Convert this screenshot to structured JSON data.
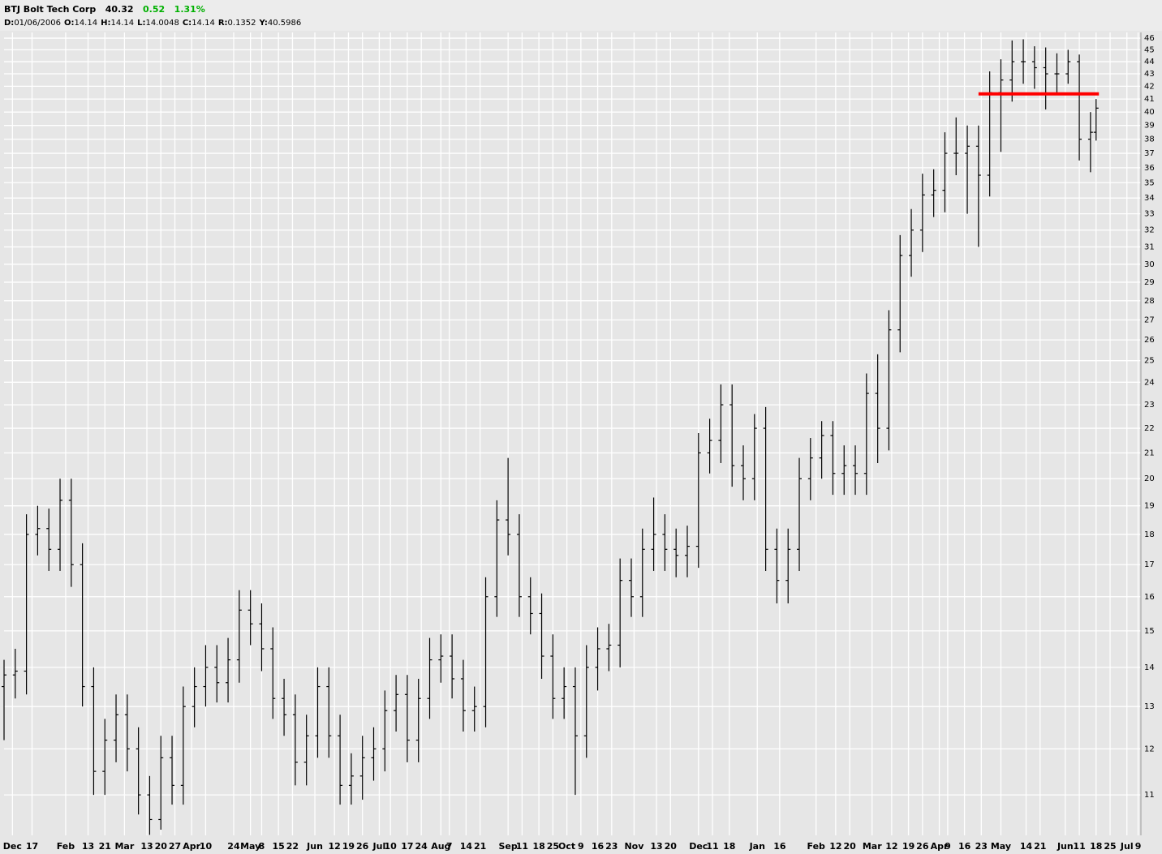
{
  "header": {
    "title": "BTJ Bolt Tech Corp",
    "last": "40.32",
    "change": "0.52",
    "change_pct": "1.31%",
    "change_color": "#00b000",
    "info": [
      {
        "label": "D:",
        "value": "01/06/2006"
      },
      {
        "label": "O:",
        "value": "14.14"
      },
      {
        "label": "H:",
        "value": "14.14"
      },
      {
        "label": "L:",
        "value": "14.0048"
      },
      {
        "label": "C:",
        "value": "14.14"
      },
      {
        "label": "R:",
        "value": "0.1352"
      },
      {
        "label": "Y:",
        "value": "40.5986"
      }
    ]
  },
  "chart_data": {
    "type": "ohlc",
    "color": "#000000",
    "log_scale": true,
    "grid": true,
    "x": [
      0,
      4,
      8,
      12,
      16,
      20,
      24,
      28,
      32,
      36,
      40,
      44,
      48,
      52,
      56,
      60,
      64,
      68,
      72,
      76,
      80,
      84,
      88,
      92,
      96,
      100,
      104,
      108,
      112,
      116,
      120,
      124,
      128,
      132,
      136,
      140,
      144,
      148,
      152,
      156,
      160,
      164,
      168,
      172,
      176,
      180,
      184,
      188,
      192,
      196,
      200,
      204,
      208,
      212,
      216,
      220,
      224,
      228,
      232,
      236,
      240,
      244,
      248,
      252,
      256,
      260,
      264,
      268,
      272,
      276,
      280,
      284,
      288,
      292,
      296,
      300,
      304,
      308,
      312,
      316,
      320,
      324,
      328,
      332,
      336,
      340,
      344,
      348,
      352,
      356,
      360,
      364,
      368,
      372,
      376,
      380,
      384,
      388,
      390
    ],
    "open": [
      13.5,
      13.8,
      13.9,
      18,
      18.2,
      17.5,
      19.2,
      17,
      13.5,
      11.5,
      12.2,
      12.8,
      12,
      11,
      10.5,
      11.8,
      11.2,
      13,
      13.5,
      14,
      13.6,
      14.2,
      15.6,
      15.2,
      14.5,
      13.2,
      12.8,
      11.7,
      12.3,
      13.5,
      12.3,
      11.2,
      11.4,
      11.8,
      12,
      12.9,
      13.3,
      12.2,
      13.2,
      14.2,
      14.3,
      13.7,
      12.9,
      13,
      16,
      18.5,
      18,
      16,
      15.5,
      14.3,
      13.2,
      13.5,
      12.3,
      14,
      14.5,
      14.6,
      16.5,
      16,
      17.5,
      18,
      17.5,
      17.3,
      17.6,
      21,
      21.5,
      23,
      20.5,
      20,
      22,
      17.5,
      16.5,
      17.5,
      20,
      20.8,
      21.7,
      20.2,
      20.5,
      20.2,
      23.5,
      22,
      26.5,
      30.5,
      32,
      34.2,
      34.5,
      37,
      37,
      37.5,
      35.5,
      41.5,
      42.5,
      44,
      44,
      43.5,
      43,
      43,
      44,
      38,
      38.5
    ],
    "high": [
      14.2,
      14.5,
      18.7,
      19,
      18.9,
      20,
      20,
      17.7,
      14,
      12.7,
      13.3,
      13.3,
      12.5,
      11.4,
      12.3,
      12.3,
      13.5,
      14,
      14.6,
      14.6,
      14.8,
      16.2,
      16.2,
      15.8,
      15.1,
      13.7,
      13.3,
      12.8,
      14,
      14,
      12.8,
      11.9,
      12.3,
      12.5,
      13.4,
      13.8,
      13.8,
      13.7,
      14.8,
      14.9,
      14.9,
      14.2,
      13.5,
      16.6,
      19.2,
      20.8,
      18.7,
      16.6,
      16.1,
      14.9,
      14,
      14,
      14.6,
      15.1,
      15.2,
      17.2,
      17.2,
      18.2,
      19.3,
      18.7,
      18.2,
      18.3,
      21.8,
      22.4,
      23.9,
      23.9,
      21.3,
      22.6,
      22.9,
      18.2,
      18.2,
      20.8,
      21.6,
      22.3,
      22.3,
      21.3,
      21.3,
      24.4,
      25.3,
      27.5,
      31.7,
      33.3,
      35.6,
      35.9,
      38.5,
      39.6,
      39,
      39,
      43.2,
      44.2,
      45.8,
      45.9,
      45.3,
      45.2,
      44.7,
      45,
      44.6,
      40,
      41
    ],
    "low": [
      12.2,
      13.2,
      13.3,
      17.3,
      16.8,
      16.8,
      16.3,
      13,
      11,
      11,
      11.7,
      11.5,
      10.6,
      10.2,
      10.3,
      10.8,
      10.8,
      12.5,
      13,
      13.1,
      13.1,
      13.6,
      14.6,
      13.9,
      12.7,
      12.3,
      11.2,
      11.2,
      11.8,
      11.8,
      10.8,
      10.8,
      10.9,
      11.3,
      11.5,
      12.4,
      11.7,
      11.7,
      12.7,
      13.6,
      13.2,
      12.4,
      12.4,
      12.5,
      15.4,
      17.3,
      15.4,
      14.9,
      13.7,
      12.7,
      12.7,
      11,
      11.8,
      13.4,
      13.9,
      14,
      15.4,
      15.4,
      16.8,
      16.8,
      16.6,
      16.6,
      16.9,
      20.2,
      20.6,
      19.7,
      19.2,
      19.2,
      16.8,
      15.8,
      15.8,
      16.8,
      19.2,
      20,
      19.4,
      19.4,
      19.4,
      19.4,
      20.6,
      21.1,
      25.4,
      29.3,
      30.7,
      32.8,
      33.1,
      35.5,
      33,
      31,
      34.1,
      37.1,
      40.8,
      42.2,
      41.8,
      40.2,
      41.3,
      42.2,
      36.5,
      35.7,
      37.9
    ],
    "close": [
      13.8,
      13.9,
      18,
      18.2,
      17.5,
      19.2,
      17,
      13.5,
      11.5,
      12.2,
      12.8,
      12,
      11,
      10.5,
      11.8,
      11.2,
      13,
      13.5,
      14,
      13.6,
      14.2,
      15.6,
      15.2,
      14.5,
      13.2,
      12.8,
      11.7,
      12.3,
      13.5,
      12.3,
      11.2,
      11.4,
      11.8,
      12,
      12.9,
      13.3,
      12.2,
      13.2,
      14.2,
      14.3,
      13.7,
      12.9,
      13,
      16,
      18.5,
      18,
      16,
      15.5,
      14.3,
      13.2,
      13.5,
      12.3,
      14,
      14.5,
      14.6,
      16.5,
      16,
      17.5,
      18,
      17.5,
      17.3,
      17.6,
      21,
      21.5,
      23,
      20.5,
      20,
      22,
      17.5,
      16.5,
      17.5,
      20,
      20.8,
      21.7,
      20.2,
      20.5,
      20.2,
      23.5,
      22,
      26.5,
      30.5,
      32,
      34.2,
      34.5,
      37,
      37,
      37.5,
      35.5,
      41.5,
      42.5,
      44,
      44,
      43.5,
      43,
      43,
      44,
      38,
      38.5,
      40.3
    ],
    "xlim": [
      0,
      406
    ],
    "xticks": [
      {
        "value": 3,
        "label": "Dec"
      },
      {
        "value": 10,
        "label": "17"
      },
      {
        "value": 22,
        "label": "Feb"
      },
      {
        "value": 30,
        "label": "13"
      },
      {
        "value": 36,
        "label": "21"
      },
      {
        "value": 43,
        "label": "Mar"
      },
      {
        "value": 51,
        "label": "13"
      },
      {
        "value": 56,
        "label": "20"
      },
      {
        "value": 61,
        "label": "27"
      },
      {
        "value": 67,
        "label": "Apr"
      },
      {
        "value": 72,
        "label": "10"
      },
      {
        "value": 82,
        "label": "24"
      },
      {
        "value": 88,
        "label": "May"
      },
      {
        "value": 92,
        "label": "8"
      },
      {
        "value": 98,
        "label": "15"
      },
      {
        "value": 103,
        "label": "22"
      },
      {
        "value": 111,
        "label": "Jun"
      },
      {
        "value": 118,
        "label": "12"
      },
      {
        "value": 123,
        "label": "19"
      },
      {
        "value": 128,
        "label": "26"
      },
      {
        "value": 134,
        "label": "Jul"
      },
      {
        "value": 138,
        "label": "10"
      },
      {
        "value": 144,
        "label": "17"
      },
      {
        "value": 149,
        "label": "24"
      },
      {
        "value": 156,
        "label": "Aug"
      },
      {
        "value": 159,
        "label": "7"
      },
      {
        "value": 165,
        "label": "14"
      },
      {
        "value": 170,
        "label": "21"
      },
      {
        "value": 180,
        "label": "Sep"
      },
      {
        "value": 185,
        "label": "11"
      },
      {
        "value": 191,
        "label": "18"
      },
      {
        "value": 196,
        "label": "25"
      },
      {
        "value": 201,
        "label": "Oct"
      },
      {
        "value": 206,
        "label": "9"
      },
      {
        "value": 212,
        "label": "16"
      },
      {
        "value": 217,
        "label": "23"
      },
      {
        "value": 225,
        "label": "Nov"
      },
      {
        "value": 233,
        "label": "13"
      },
      {
        "value": 238,
        "label": "20"
      },
      {
        "value": 248,
        "label": "Dec"
      },
      {
        "value": 253,
        "label": "11"
      },
      {
        "value": 259,
        "label": "18"
      },
      {
        "value": 269,
        "label": "Jan"
      },
      {
        "value": 277,
        "label": "16"
      },
      {
        "value": 290,
        "label": "Feb"
      },
      {
        "value": 297,
        "label": "12"
      },
      {
        "value": 302,
        "label": "20"
      },
      {
        "value": 310,
        "label": "Mar"
      },
      {
        "value": 317,
        "label": "12"
      },
      {
        "value": 323,
        "label": "19"
      },
      {
        "value": 328,
        "label": "26"
      },
      {
        "value": 334,
        "label": "Apr"
      },
      {
        "value": 337,
        "label": "9"
      },
      {
        "value": 343,
        "label": "16"
      },
      {
        "value": 349,
        "label": "23"
      },
      {
        "value": 356,
        "label": "May"
      },
      {
        "value": 365,
        "label": "14"
      },
      {
        "value": 370,
        "label": "21"
      },
      {
        "value": 379,
        "label": "Jun"
      },
      {
        "value": 384,
        "label": "11"
      },
      {
        "value": 390,
        "label": "18"
      },
      {
        "value": 395,
        "label": "25"
      },
      {
        "value": 401,
        "label": "Jul"
      },
      {
        "value": 405,
        "label": "9"
      }
    ],
    "ylim": [
      10.19,
      46.5
    ],
    "yticks": [
      11,
      12,
      13,
      14,
      15,
      16,
      17,
      18,
      19,
      20,
      21,
      22,
      23,
      24,
      25,
      26,
      27,
      28,
      29,
      30,
      31,
      32,
      33,
      34,
      35,
      36,
      37,
      38,
      39,
      40,
      41,
      42,
      43,
      44,
      45,
      46
    ],
    "hline": {
      "value": 41.4,
      "x": [
        348,
        391
      ],
      "color": "#ff0000"
    }
  }
}
